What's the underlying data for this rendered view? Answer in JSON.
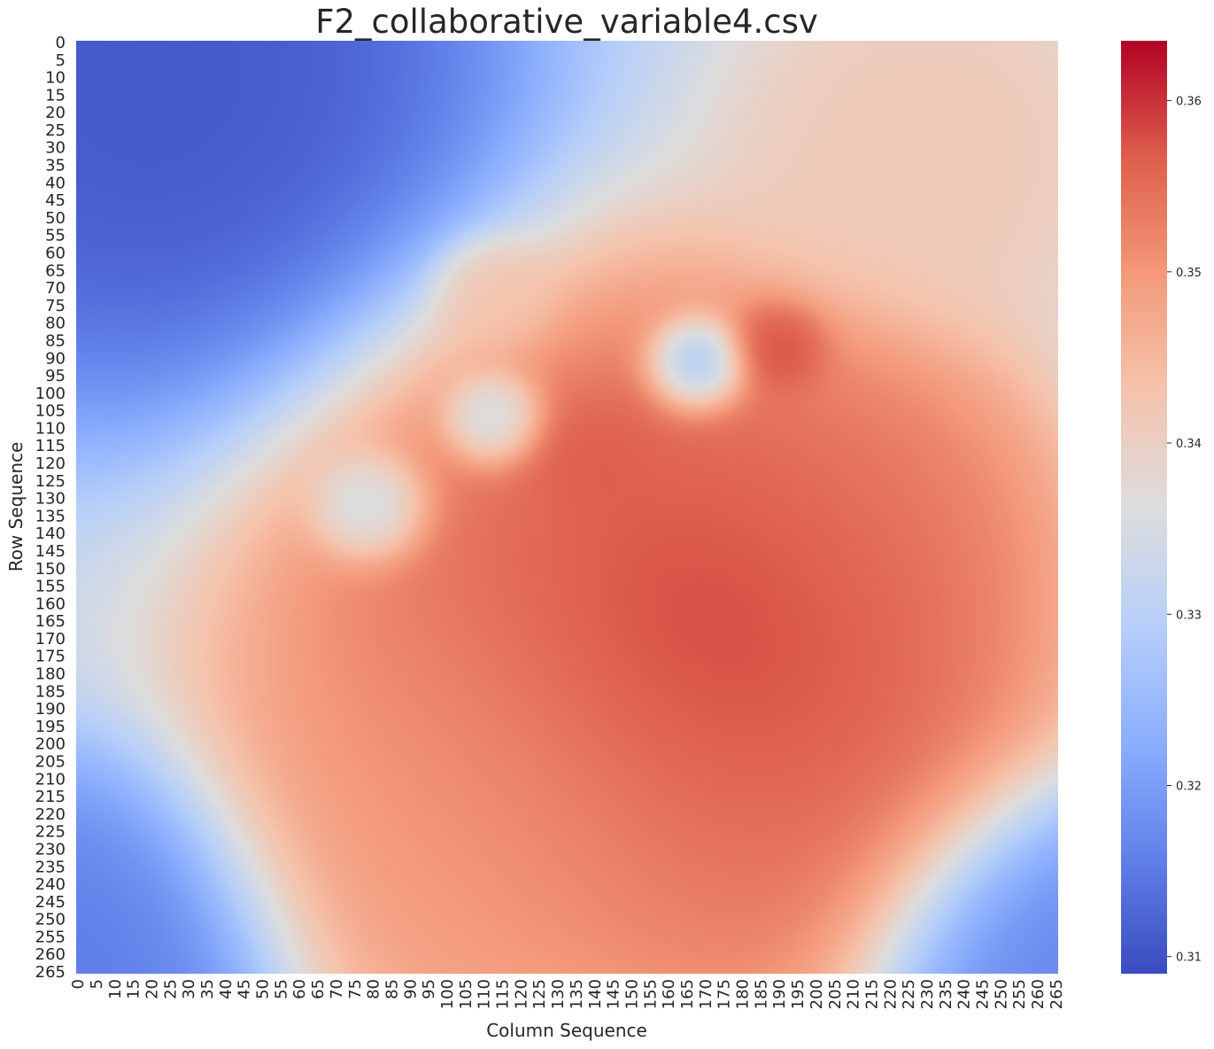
{
  "chart_data": {
    "type": "heatmap",
    "title": "F2_collaborative_variable4.csv",
    "xlabel": "Column Sequence",
    "ylabel": "Row Sequence",
    "x_range": [
      0,
      265
    ],
    "y_range": [
      0,
      265
    ],
    "tick_step": 5,
    "colormap": "coolwarm",
    "colorbar": {
      "vmin": 0.309,
      "vmax": 0.3635,
      "ticks": [
        "0.31",
        "0.32",
        "0.33",
        "0.34",
        "0.35",
        "0.36"
      ]
    },
    "field": {
      "background_value": 0.333,
      "blobs": [
        {
          "x": 175,
          "y": 165,
          "value": 0.3635,
          "sigma": 28
        },
        {
          "x": 145,
          "y": 160,
          "value": 0.357,
          "sigma": 45
        },
        {
          "x": 175,
          "y": 200,
          "value": 0.356,
          "sigma": 40
        },
        {
          "x": 200,
          "y": 140,
          "value": 0.354,
          "sigma": 30
        },
        {
          "x": 110,
          "y": 220,
          "value": 0.35,
          "sigma": 35
        },
        {
          "x": 230,
          "y": 30,
          "value": 0.342,
          "sigma": 25
        },
        {
          "x": 20,
          "y": 10,
          "value": 0.309,
          "sigma": 45
        },
        {
          "x": 0,
          "y": 265,
          "value": 0.314,
          "sigma": 28
        },
        {
          "x": 265,
          "y": 265,
          "value": 0.315,
          "sigma": 25
        },
        {
          "x": 168,
          "y": 93,
          "value": 0.318,
          "sigma": 7
        },
        {
          "x": 80,
          "y": 133,
          "value": 0.33,
          "sigma": 8
        },
        {
          "x": 113,
          "y": 108,
          "value": 0.328,
          "sigma": 7
        },
        {
          "x": 190,
          "y": 88,
          "value": 0.36,
          "sigma": 7
        },
        {
          "x": 113,
          "y": 73,
          "value": 0.343,
          "sigma": 8
        },
        {
          "x": 140,
          "y": 120,
          "value": 0.358,
          "sigma": 10
        }
      ]
    }
  }
}
